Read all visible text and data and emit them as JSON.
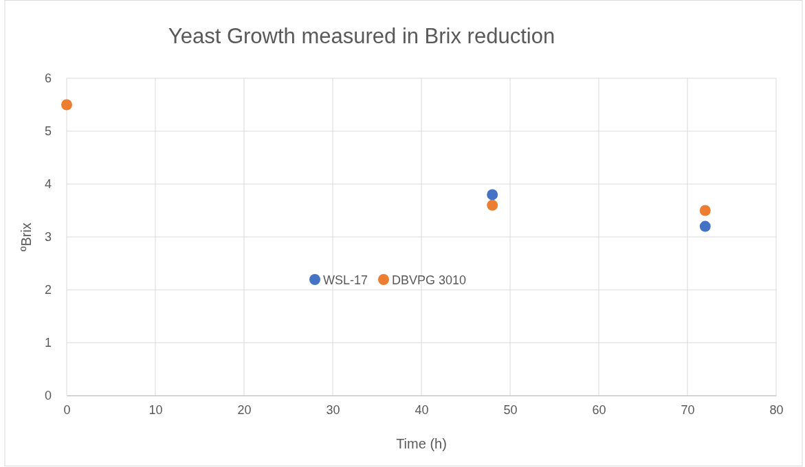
{
  "chart_data": {
    "type": "scatter",
    "title": "Yeast Growth measured in Brix reduction",
    "xlabel": "Time (h)",
    "ylabel": "ºBrix",
    "series": [
      {
        "name": "WSL-17",
        "color": "#4472c4",
        "x": [
          null,
          48,
          72
        ],
        "values": [
          null,
          3.8,
          3.2
        ]
      },
      {
        "name": "DBVPG 3010",
        "color": "#ed7d31",
        "x": [
          0,
          48,
          72
        ],
        "values": [
          5.5,
          3.6,
          3.5
        ]
      }
    ],
    "xlim": [
      0,
      80
    ],
    "xticks": [
      0,
      10,
      20,
      30,
      40,
      50,
      60,
      70,
      80
    ],
    "ylim": [
      0,
      6
    ],
    "yticks": [
      0,
      1,
      2,
      3,
      4,
      5,
      6
    ],
    "grid": true,
    "legend": "center",
    "marker": "circle"
  }
}
